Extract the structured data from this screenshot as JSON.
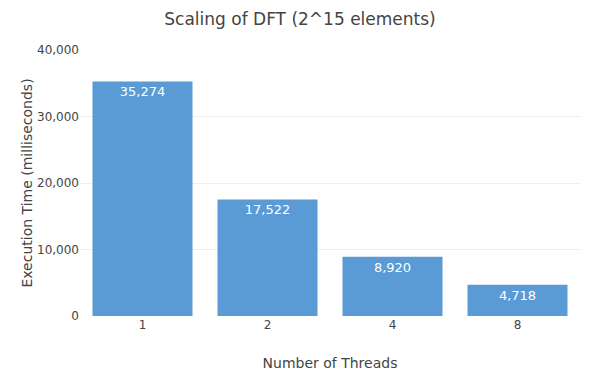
{
  "chart_data": {
    "type": "bar",
    "title": "Scaling of DFT (2^15 elements)",
    "xlabel": "Number of Threads",
    "ylabel": "Execution Time (milliseconds)",
    "categories": [
      "1",
      "2",
      "4",
      "8"
    ],
    "values": [
      35274,
      17522,
      8920,
      4718
    ],
    "value_labels": [
      "35,274",
      "17,522",
      "8,920",
      "4,718"
    ],
    "color": "#5b9bd5",
    "ylim": [
      0,
      40000
    ],
    "yticks": [
      0,
      {
        "value": 10000,
        "label": "10,000"
      },
      {
        "value": 20000,
        "label": "20,000"
      },
      {
        "value": 30000,
        "label": "30,000"
      },
      {
        "value": 40000,
        "label": "40,000"
      }
    ],
    "grid": true,
    "data_labels": true
  }
}
